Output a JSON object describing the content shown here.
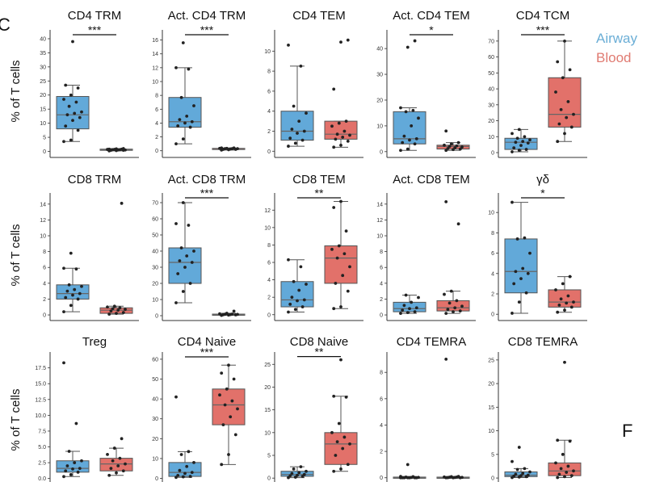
{
  "figure": {
    "panel_letter": "C",
    "next_panel_letter": "F",
    "y_label": "% of T cells",
    "legend": [
      {
        "label": "Airway",
        "color": "#6baed6"
      },
      {
        "label": "Blood",
        "color": "#e07b72"
      }
    ]
  },
  "colors": {
    "airway_fill": "#62a9d9",
    "blood_fill": "#e2716a",
    "point": "#222222",
    "median": "#666666"
  },
  "chart_data": [
    {
      "type": "box",
      "title": "CD4 TRM",
      "ylim": [
        -1,
        42
      ],
      "yticks": [
        0,
        5,
        10,
        15,
        20,
        25,
        30,
        35,
        40
      ],
      "significance": "***",
      "series": [
        {
          "name": "Airway",
          "whisker_low": 3.5,
          "q1": 8,
          "median": 13,
          "q3": 19.5,
          "whisker_high": 23.5,
          "points": [
            3.5,
            4,
            7.5,
            9,
            11,
            12,
            13,
            13.5,
            14,
            16,
            17.5,
            18.5,
            20,
            22.5,
            23.5,
            39
          ]
        },
        {
          "name": "Blood",
          "whisker_low": 0.2,
          "q1": 0.4,
          "median": 0.6,
          "q3": 0.8,
          "whisker_high": 1,
          "points": [
            0.2,
            0.3,
            0.4,
            0.4,
            0.5,
            0.5,
            0.6,
            0.6,
            0.7,
            0.7,
            0.8,
            0.8,
            0.9,
            1
          ]
        }
      ]
    },
    {
      "type": "box",
      "title": "Act. CD4 TRM",
      "ylim": [
        -0.5,
        17
      ],
      "yticks": [
        0,
        2,
        4,
        6,
        8,
        10,
        12,
        14,
        16
      ],
      "significance": "***",
      "series": [
        {
          "name": "Airway",
          "whisker_low": 1,
          "q1": 3.4,
          "median": 4.2,
          "q3": 7.7,
          "whisker_high": 12,
          "points": [
            1,
            1.7,
            3.4,
            3.6,
            4,
            4.2,
            4.5,
            5,
            6.5,
            7.7,
            11.8,
            12,
            15.6
          ]
        },
        {
          "name": "Blood",
          "whisker_low": 0.1,
          "q1": 0.2,
          "median": 0.3,
          "q3": 0.35,
          "whisker_high": 0.4,
          "points": [
            0.1,
            0.15,
            0.2,
            0.2,
            0.25,
            0.3,
            0.3,
            0.3,
            0.35,
            0.35,
            0.4,
            0.4
          ]
        }
      ]
    },
    {
      "type": "box",
      "title": "CD4 TEM",
      "ylim": [
        -0.3,
        11.8
      ],
      "yticks": [
        0,
        2,
        4,
        6,
        8,
        10
      ],
      "significance": "",
      "series": [
        {
          "name": "Airway",
          "whisker_low": 0.5,
          "q1": 1.1,
          "median": 2,
          "q3": 4,
          "whisker_high": 8.5,
          "points": [
            0.5,
            0.8,
            1.1,
            1.3,
            1.8,
            2,
            2.2,
            3,
            3.8,
            4.5,
            8.5,
            10.6
          ]
        },
        {
          "name": "Blood",
          "whisker_low": 0.4,
          "q1": 1.2,
          "median": 1.7,
          "q3": 3,
          "whisker_high": 3,
          "points": [
            0.4,
            0.6,
            1,
            1.2,
            1.4,
            1.6,
            1.7,
            2,
            2.5,
            2.8,
            3,
            6.2,
            10.9,
            11.1
          ]
        }
      ]
    },
    {
      "type": "box",
      "title": "Act. CD4 TEM",
      "ylim": [
        -1,
        46
      ],
      "yticks": [
        0,
        10,
        20,
        30,
        40
      ],
      "significance": "*",
      "series": [
        {
          "name": "Airway",
          "whisker_low": 0.5,
          "q1": 3,
          "median": 5,
          "q3": 15.5,
          "whisker_high": 17,
          "points": [
            0.5,
            1,
            3,
            3.5,
            4.5,
            5,
            6,
            10,
            13,
            15.5,
            16,
            17,
            40.5,
            43
          ]
        },
        {
          "name": "Blood",
          "whisker_low": 0.5,
          "q1": 1,
          "median": 2,
          "q3": 2.5,
          "whisker_high": 3.5,
          "points": [
            0.5,
            0.8,
            1,
            1.2,
            1.5,
            1.8,
            2,
            2.2,
            2.5,
            3,
            3.5,
            8
          ]
        }
      ]
    },
    {
      "type": "box",
      "title": "CD4 TCM",
      "ylim": [
        -1,
        75
      ],
      "yticks": [
        0,
        10,
        20,
        30,
        40,
        50,
        60,
        70
      ],
      "significance": "***",
      "series": [
        {
          "name": "Airway",
          "whisker_low": 0.5,
          "q1": 2,
          "median": 6.5,
          "q3": 9,
          "whisker_high": 14.5,
          "points": [
            0.5,
            1.5,
            2,
            3,
            4.5,
            6,
            6.5,
            7,
            8,
            9,
            10,
            12,
            14.5
          ]
        },
        {
          "name": "Blood",
          "whisker_low": 7,
          "q1": 16,
          "median": 24,
          "q3": 47,
          "whisker_high": 70,
          "points": [
            7,
            12,
            16,
            18,
            22,
            24,
            27,
            32,
            38,
            47,
            52,
            57,
            70
          ]
        }
      ]
    },
    {
      "type": "box",
      "title": "CD8 TRM",
      "ylim": [
        -0.3,
        15
      ],
      "yticks": [
        0,
        2,
        4,
        6,
        8,
        10,
        12,
        14
      ],
      "significance": "",
      "series": [
        {
          "name": "Airway",
          "whisker_low": 0.4,
          "q1": 2,
          "median": 2.7,
          "q3": 3.8,
          "whisker_high": 5.9,
          "points": [
            0.4,
            1.2,
            2,
            2.2,
            2.5,
            2.7,
            3,
            3.2,
            3.6,
            3.8,
            5.8,
            5.9,
            7.8
          ]
        },
        {
          "name": "Blood",
          "whisker_low": 0.1,
          "q1": 0.2,
          "median": 0.6,
          "q3": 0.9,
          "whisker_high": 1.1,
          "points": [
            0.1,
            0.2,
            0.3,
            0.5,
            0.6,
            0.7,
            0.8,
            0.9,
            1,
            1.1,
            14.1
          ]
        }
      ]
    },
    {
      "type": "box",
      "title": "Act. CD8 TRM",
      "ylim": [
        -1,
        74
      ],
      "yticks": [
        0,
        10,
        20,
        30,
        40,
        50,
        60,
        70
      ],
      "significance": "***",
      "series": [
        {
          "name": "Airway",
          "whisker_low": 8,
          "q1": 20,
          "median": 33,
          "q3": 42,
          "whisker_high": 70,
          "points": [
            8,
            15,
            20,
            26,
            30,
            33,
            34,
            37,
            40,
            42,
            56,
            57,
            70
          ]
        },
        {
          "name": "Blood",
          "whisker_low": 0.2,
          "q1": 0.5,
          "median": 0.8,
          "q3": 1,
          "whisker_high": 1.5,
          "points": [
            0.2,
            0.4,
            0.5,
            0.6,
            0.7,
            0.8,
            0.9,
            1,
            1.2,
            1.5,
            2.8
          ]
        }
      ]
    },
    {
      "type": "box",
      "title": "CD8 TEM",
      "ylim": [
        -0.3,
        13.6
      ],
      "yticks": [
        0,
        2,
        4,
        6,
        8,
        10,
        12
      ],
      "significance": "**",
      "series": [
        {
          "name": "Airway",
          "whisker_low": 0.3,
          "q1": 0.9,
          "median": 1.7,
          "q3": 3.8,
          "whisker_high": 6.3,
          "points": [
            0.3,
            0.6,
            0.9,
            1.2,
            1.6,
            1.7,
            2,
            2.8,
            3.5,
            3.8,
            5.5,
            6.3
          ]
        },
        {
          "name": "Blood",
          "whisker_low": 0.7,
          "q1": 3.6,
          "median": 6.5,
          "q3": 7.9,
          "whisker_high": 13,
          "points": [
            0.7,
            0.9,
            2.7,
            3.6,
            4.5,
            5.5,
            6.5,
            7,
            7.5,
            7.9,
            9.6,
            12.3,
            13
          ]
        }
      ]
    },
    {
      "type": "box",
      "title": "Act. CD8 TEM",
      "ylim": [
        -0.3,
        15
      ],
      "yticks": [
        0,
        2,
        4,
        6,
        8,
        10,
        12,
        14
      ],
      "significance": "",
      "series": [
        {
          "name": "Airway",
          "whisker_low": 0.2,
          "q1": 0.4,
          "median": 0.8,
          "q3": 1.6,
          "whisker_high": 2.5,
          "points": [
            0.2,
            0.3,
            0.4,
            0.6,
            0.8,
            0.9,
            1.2,
            1.6,
            2.2,
            2.5
          ]
        },
        {
          "name": "Blood",
          "whisker_low": 0.2,
          "q1": 0.5,
          "median": 0.9,
          "q3": 1.8,
          "whisker_high": 3,
          "points": [
            0.2,
            0.4,
            0.5,
            0.7,
            0.9,
            1.1,
            1.5,
            1.8,
            2.6,
            3,
            11.5,
            14.3
          ]
        }
      ]
    },
    {
      "type": "box",
      "title": "γδ",
      "ylim": [
        -0.3,
        11.6
      ],
      "yticks": [
        0,
        2,
        4,
        6,
        8,
        10
      ],
      "significance": "*",
      "series": [
        {
          "name": "Airway",
          "whisker_low": 0.1,
          "q1": 2.1,
          "median": 4.2,
          "q3": 7.4,
          "whisker_high": 11,
          "points": [
            0.1,
            1.2,
            2.1,
            3,
            3.5,
            4,
            4.2,
            4.5,
            6,
            7.4,
            7.5,
            11
          ]
        },
        {
          "name": "Blood",
          "whisker_low": 0.2,
          "q1": 0.7,
          "median": 1.2,
          "q3": 2.4,
          "whisker_high": 3.7,
          "points": [
            0.2,
            0.4,
            0.7,
            0.9,
            1.1,
            1.2,
            1.5,
            1.8,
            2.4,
            3,
            3.7
          ]
        }
      ]
    },
    {
      "type": "box",
      "title": "Treg",
      "ylim": [
        -0.3,
        19.5
      ],
      "yticks": [
        0,
        2.5,
        5,
        7.5,
        10,
        12.5,
        15,
        17.5
      ],
      "ytick_labels": [
        "0.0",
        "2.5",
        "5.0",
        "7.5",
        "10.0",
        "12.5",
        "15.0",
        "17.5"
      ],
      "significance": "",
      "series": [
        {
          "name": "Airway",
          "whisker_low": 0.3,
          "q1": 1,
          "median": 1.6,
          "q3": 2.8,
          "whisker_high": 4.3,
          "points": [
            0.3,
            0.6,
            1,
            1.2,
            1.5,
            1.6,
            2,
            2.5,
            2.8,
            4.3,
            8.7,
            18.3
          ]
        },
        {
          "name": "Blood",
          "whisker_low": 0.5,
          "q1": 1.2,
          "median": 2.3,
          "q3": 3.2,
          "whisker_high": 4.8,
          "points": [
            0.5,
            0.9,
            1.2,
            1.6,
            2,
            2.3,
            2.8,
            3.2,
            3.8,
            4.8,
            6.3
          ]
        }
      ]
    },
    {
      "type": "box",
      "title": "CD4 Naive",
      "ylim": [
        -1,
        62
      ],
      "yticks": [
        0,
        10,
        20,
        30,
        40,
        50,
        60
      ],
      "significance": "***",
      "series": [
        {
          "name": "Airway",
          "whisker_low": 0.5,
          "q1": 1,
          "median": 3,
          "q3": 8,
          "whisker_high": 13.5,
          "points": [
            0.5,
            0.8,
            1,
            1.5,
            2.5,
            3,
            4,
            6,
            8,
            12,
            13.5,
            41
          ]
        },
        {
          "name": "Blood",
          "whisker_low": 7,
          "q1": 27,
          "median": 37,
          "q3": 45,
          "whisker_high": 57,
          "points": [
            7,
            12,
            22,
            27,
            31,
            35,
            37,
            39,
            42,
            45,
            50,
            53,
            57
          ]
        }
      ]
    },
    {
      "type": "box",
      "title": "CD8 Naive",
      "ylim": [
        -0.5,
        27
      ],
      "yticks": [
        0,
        5,
        10,
        15,
        20,
        25
      ],
      "significance": "**",
      "series": [
        {
          "name": "Airway",
          "whisker_low": 0.1,
          "q1": 0.4,
          "median": 0.8,
          "q3": 1.5,
          "whisker_high": 2.5,
          "points": [
            0.1,
            0.2,
            0.4,
            0.5,
            0.6,
            0.8,
            1,
            1.2,
            1.5,
            2,
            2.5
          ]
        },
        {
          "name": "Blood",
          "whisker_low": 1.5,
          "q1": 3,
          "median": 7.5,
          "q3": 10,
          "whisker_high": 18,
          "points": [
            1.5,
            2,
            3,
            5,
            6.5,
            7.5,
            8,
            9,
            10,
            12,
            17.8,
            18,
            26
          ]
        }
      ]
    },
    {
      "type": "box",
      "title": "CD4 TEMRA",
      "ylim": [
        -0.2,
        9.3
      ],
      "yticks": [
        0,
        2,
        4,
        6,
        8
      ],
      "significance": "",
      "series": [
        {
          "name": "Airway",
          "whisker_low": 0,
          "q1": 0,
          "median": 0,
          "q3": 0.05,
          "whisker_high": 0.1,
          "points": [
            0,
            0,
            0,
            0,
            0,
            0,
            0,
            0.02,
            0.03,
            0.05,
            0.08,
            0.1,
            1
          ]
        },
        {
          "name": "Blood",
          "whisker_low": 0,
          "q1": 0,
          "median": 0.02,
          "q3": 0.05,
          "whisker_high": 0.1,
          "points": [
            0,
            0,
            0,
            0.01,
            0.02,
            0.03,
            0.04,
            0.05,
            0.06,
            0.08,
            0.1,
            9
          ]
        }
      ]
    },
    {
      "type": "box",
      "title": "CD8 TEMRA",
      "ylim": [
        -0.5,
        26
      ],
      "yticks": [
        0,
        5,
        10,
        15,
        20,
        25
      ],
      "significance": "",
      "series": [
        {
          "name": "Airway",
          "whisker_low": 0.1,
          "q1": 0.3,
          "median": 0.6,
          "q3": 1.3,
          "whisker_high": 2,
          "points": [
            0.1,
            0.2,
            0.3,
            0.4,
            0.5,
            0.6,
            0.8,
            1,
            1.3,
            1.8,
            2,
            3.5,
            6.5
          ]
        },
        {
          "name": "Blood",
          "whisker_low": 0.1,
          "q1": 0.5,
          "median": 1.5,
          "q3": 3.2,
          "whisker_high": 8,
          "points": [
            0.1,
            0.3,
            0.5,
            0.8,
            1.2,
            1.5,
            2,
            2.5,
            3.2,
            5,
            7.8,
            8,
            24.5
          ]
        }
      ]
    }
  ]
}
